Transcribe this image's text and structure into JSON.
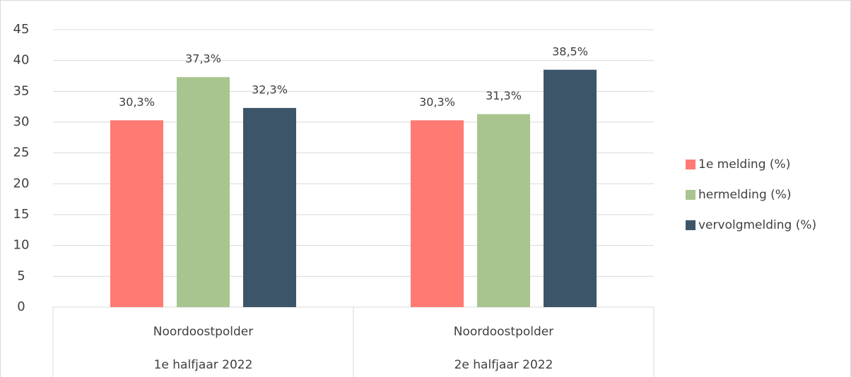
{
  "chart_data": {
    "type": "bar",
    "categories": [
      [
        "Noordoostpolder",
        "1e halfjaar 2022"
      ],
      [
        "Noordoostpolder",
        "2e halfjaar 2022"
      ]
    ],
    "series": [
      {
        "name": "1e melding (%)",
        "color": "#ff7a73",
        "values": [
          30.3,
          30.3
        ],
        "value_labels": [
          "30,3%",
          "30,3%"
        ]
      },
      {
        "name": "hermelding (%)",
        "color": "#a9c58f",
        "values": [
          37.3,
          31.3
        ],
        "value_labels": [
          "37,3%",
          "31,3%"
        ]
      },
      {
        "name": "vervolgmelding (%)",
        "color": "#3d5568",
        "values": [
          32.3,
          38.5
        ],
        "value_labels": [
          "32,3%",
          "38,5%"
        ]
      }
    ],
    "ylim": [
      0,
      45
    ],
    "yticks": [
      0,
      5,
      10,
      15,
      20,
      25,
      30,
      35,
      40,
      45
    ],
    "grid": true,
    "legend": "right"
  }
}
